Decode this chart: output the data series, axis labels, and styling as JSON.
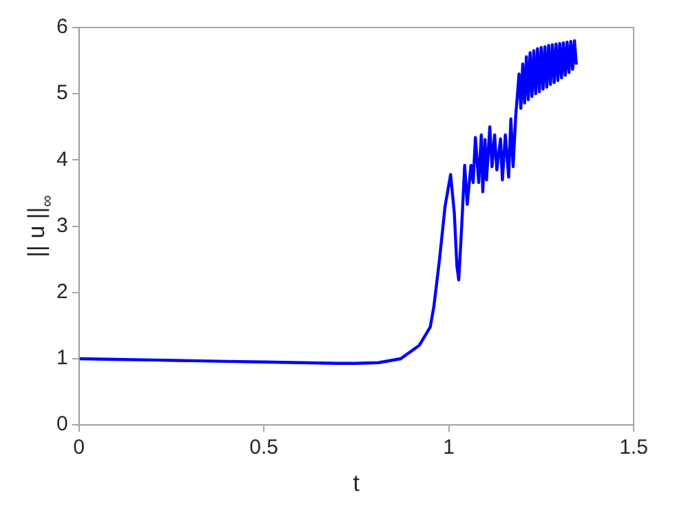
{
  "chart_data": {
    "type": "line",
    "xlabel": "t",
    "ylabel": "|| u ||$_{∞}$",
    "xlim": [
      0,
      1.5
    ],
    "ylim": [
      0,
      6
    ],
    "xticks": [
      0,
      0.5,
      1,
      1.5
    ],
    "yticks": [
      0,
      1,
      2,
      3,
      4,
      5,
      6
    ],
    "grid": false,
    "legend": false,
    "marker": "none",
    "line_style": "solid",
    "series": [
      {
        "color": "#0000ff",
        "x": [
          0,
          0.1,
          0.2,
          0.3,
          0.4,
          0.5,
          0.6,
          0.7,
          0.75,
          0.81,
          0.87,
          0.92,
          0.95,
          0.96,
          0.975,
          0.99,
          1.005,
          1.015,
          1.022,
          1.027,
          1.035,
          1.043,
          1.05,
          1.06,
          1.066,
          1.072,
          1.081,
          1.088,
          1.092,
          1.098,
          1.102,
          1.111,
          1.117,
          1.124,
          1.13,
          1.14,
          1.145,
          1.153,
          1.162,
          1.168,
          1.174,
          1.181,
          1.187,
          1.19,
          1.195,
          1.2,
          1.205,
          1.21,
          1.215,
          1.22,
          1.225,
          1.23,
          1.235,
          1.24,
          1.245,
          1.25,
          1.255,
          1.26,
          1.265,
          1.27,
          1.275,
          1.28,
          1.285,
          1.29,
          1.295,
          1.3,
          1.305,
          1.31,
          1.315,
          1.32,
          1.325,
          1.33,
          1.335,
          1.34,
          1.345
        ],
        "values": [
          1,
          0.99,
          0.98,
          0.97,
          0.96,
          0.95,
          0.94,
          0.93,
          0.93,
          0.94,
          1,
          1.2,
          1.48,
          1.8,
          2.5,
          3.3,
          3.78,
          3.2,
          2.4,
          2.19,
          3,
          3.92,
          3.33,
          3.92,
          3.66,
          4.34,
          3.66,
          4.38,
          3.52,
          4.31,
          3.7,
          4.5,
          3.9,
          4.38,
          3.85,
          4.32,
          3.7,
          4.38,
          3.74,
          4.62,
          3.9,
          4.66,
          5.08,
          5.3,
          4.78,
          5.45,
          4.86,
          5.56,
          4.91,
          5.62,
          4.96,
          5.65,
          5,
          5.68,
          5.03,
          5.7,
          5.07,
          5.71,
          5.1,
          5.73,
          5.14,
          5.74,
          5.17,
          5.75,
          5.2,
          5.76,
          5.24,
          5.77,
          5.28,
          5.78,
          5.32,
          5.79,
          5.37,
          5.8,
          5.44
        ]
      }
    ]
  }
}
